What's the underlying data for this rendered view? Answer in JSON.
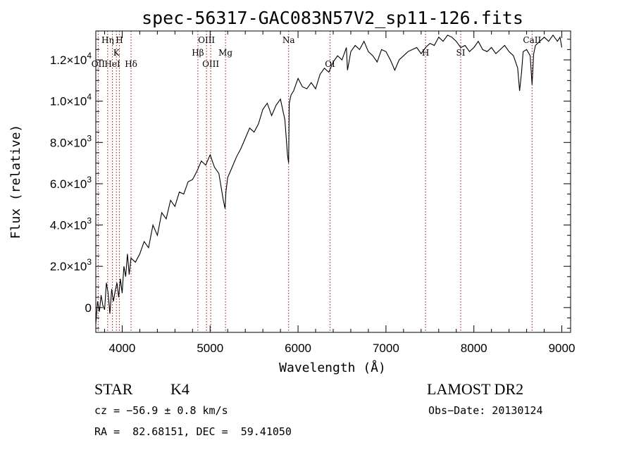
{
  "chart_data": {
    "type": "line",
    "title": "spec-56317-GAC083N57V2_sp11-126.fits",
    "xlabel": "Wavelength (Å)",
    "ylabel": "Flux (relative)",
    "xlim": [
      3700,
      9100
    ],
    "ylim": [
      -1200,
      13400
    ],
    "x_ticks": [
      {
        "value": 4000,
        "label": "4000"
      },
      {
        "value": 5000,
        "label": "5000"
      },
      {
        "value": 6000,
        "label": "6000"
      },
      {
        "value": 7000,
        "label": "7000"
      },
      {
        "value": 8000,
        "label": "8000"
      },
      {
        "value": 9000,
        "label": "9000"
      }
    ],
    "y_ticks": [
      {
        "value": 0,
        "mant": "0",
        "exp": ""
      },
      {
        "value": 2000,
        "mant": "2.0×10",
        "exp": "3"
      },
      {
        "value": 4000,
        "mant": "4.0×10",
        "exp": "3"
      },
      {
        "value": 6000,
        "mant": "6.0×10",
        "exp": "3"
      },
      {
        "value": 8000,
        "mant": "8.0×10",
        "exp": "3"
      },
      {
        "value": 10000,
        "mant": "1.0×10",
        "exp": "4"
      },
      {
        "value": 12000,
        "mant": "1.2×10",
        "exp": "4"
      }
    ],
    "grid": false,
    "series": [
      {
        "x": [
          3700,
          3720,
          3740,
          3760,
          3780,
          3800,
          3820,
          3840,
          3860,
          3880,
          3900,
          3920,
          3940,
          3960,
          3980,
          4000,
          4020,
          4040,
          4060,
          4080,
          4100,
          4150,
          4200,
          4250,
          4300,
          4350,
          4400,
          4450,
          4500,
          4550,
          4600,
          4650,
          4700,
          4750,
          4800,
          4850,
          4900,
          4950,
          5000,
          5050,
          5100,
          5150,
          5170,
          5180,
          5200,
          5250,
          5300,
          5350,
          5400,
          5450,
          5500,
          5550,
          5600,
          5650,
          5700,
          5750,
          5800,
          5850,
          5870,
          5880,
          5890,
          5893,
          5896,
          5900,
          5920,
          5950,
          6000,
          6050,
          6100,
          6150,
          6200,
          6250,
          6300,
          6350,
          6400,
          6450,
          6500,
          6550,
          6563,
          6600,
          6650,
          6700,
          6750,
          6800,
          6850,
          6900,
          6950,
          7000,
          7050,
          7100,
          7150,
          7200,
          7250,
          7300,
          7350,
          7400,
          7450,
          7500,
          7550,
          7600,
          7650,
          7700,
          7750,
          7800,
          7850,
          7900,
          7950,
          8000,
          8050,
          8100,
          8150,
          8200,
          8250,
          8300,
          8350,
          8400,
          8450,
          8498,
          8520,
          8542,
          8560,
          8600,
          8640,
          8662,
          8680,
          8700,
          8750,
          8800,
          8850,
          8900,
          8950,
          8980,
          9000
        ],
        "y": [
          -800,
          300,
          -200,
          600,
          100,
          -100,
          1200,
          700,
          -300,
          900,
          300,
          800,
          1200,
          500,
          1400,
          700,
          2000,
          1500,
          2600,
          1600,
          2400,
          2200,
          2600,
          3200,
          2900,
          4000,
          3500,
          4600,
          4300,
          5200,
          4900,
          5600,
          5500,
          6100,
          6200,
          6600,
          7100,
          6900,
          7400,
          6800,
          6500,
          5200,
          4800,
          5600,
          6300,
          6800,
          7300,
          7700,
          8200,
          8700,
          8500,
          8900,
          9600,
          9900,
          9300,
          9800,
          10100,
          9100,
          8000,
          7400,
          7100,
          7000,
          8200,
          9900,
          10300,
          10500,
          11100,
          10700,
          10600,
          10900,
          10600,
          11300,
          11600,
          11400,
          11900,
          12200,
          12000,
          12600,
          11500,
          12400,
          12700,
          12500,
          12900,
          12400,
          12200,
          11900,
          12500,
          12400,
          12000,
          11500,
          12000,
          12200,
          12400,
          12500,
          12600,
          12300,
          12600,
          12800,
          12700,
          13100,
          12900,
          13200,
          13100,
          12900,
          12600,
          12700,
          12400,
          12600,
          12900,
          12500,
          12400,
          12600,
          12300,
          12500,
          12700,
          12400,
          12200,
          11600,
          10500,
          11400,
          12400,
          12500,
          12200,
          10800,
          12300,
          12700,
          12900,
          13100,
          12900,
          13200,
          12900,
          13100,
          12600
        ]
      }
    ],
    "line_markers": [
      {
        "x": 3727,
        "label": "OII",
        "row": 3
      },
      {
        "x": 3835,
        "label": "Hη",
        "row": 1
      },
      {
        "x": 3889,
        "label": "HeI",
        "row": 3
      },
      {
        "x": 3934,
        "label": "K",
        "row": 2
      },
      {
        "x": 3968,
        "label": "H",
        "row": 1
      },
      {
        "x": 4101,
        "label": "Hδ",
        "row": 3
      },
      {
        "x": 4861,
        "label": "Hβ",
        "row": 2
      },
      {
        "x": 4959,
        "label": "OIII",
        "row": 1
      },
      {
        "x": 5007,
        "label": "OIII",
        "row": 3
      },
      {
        "x": 5175,
        "label": "Mg",
        "row": 2
      },
      {
        "x": 5893,
        "label": "Na",
        "row": 1
      },
      {
        "x": 6364,
        "label": "OI",
        "row": 3
      },
      {
        "x": 7450,
        "label": "H",
        "row": 2
      },
      {
        "x": 7850,
        "label": "SI",
        "row": 2
      },
      {
        "x": 8662,
        "label": "CaII",
        "row": 1
      }
    ]
  },
  "info": {
    "object_class": "STAR",
    "subclass": "K4",
    "survey": "LAMOST DR2",
    "velocity": "cz = −56.9 ± 0.8 km/s",
    "obs_date": "Obs−Date: 20130124",
    "coords": "RA =  82.68151, DEC =  59.41050"
  }
}
